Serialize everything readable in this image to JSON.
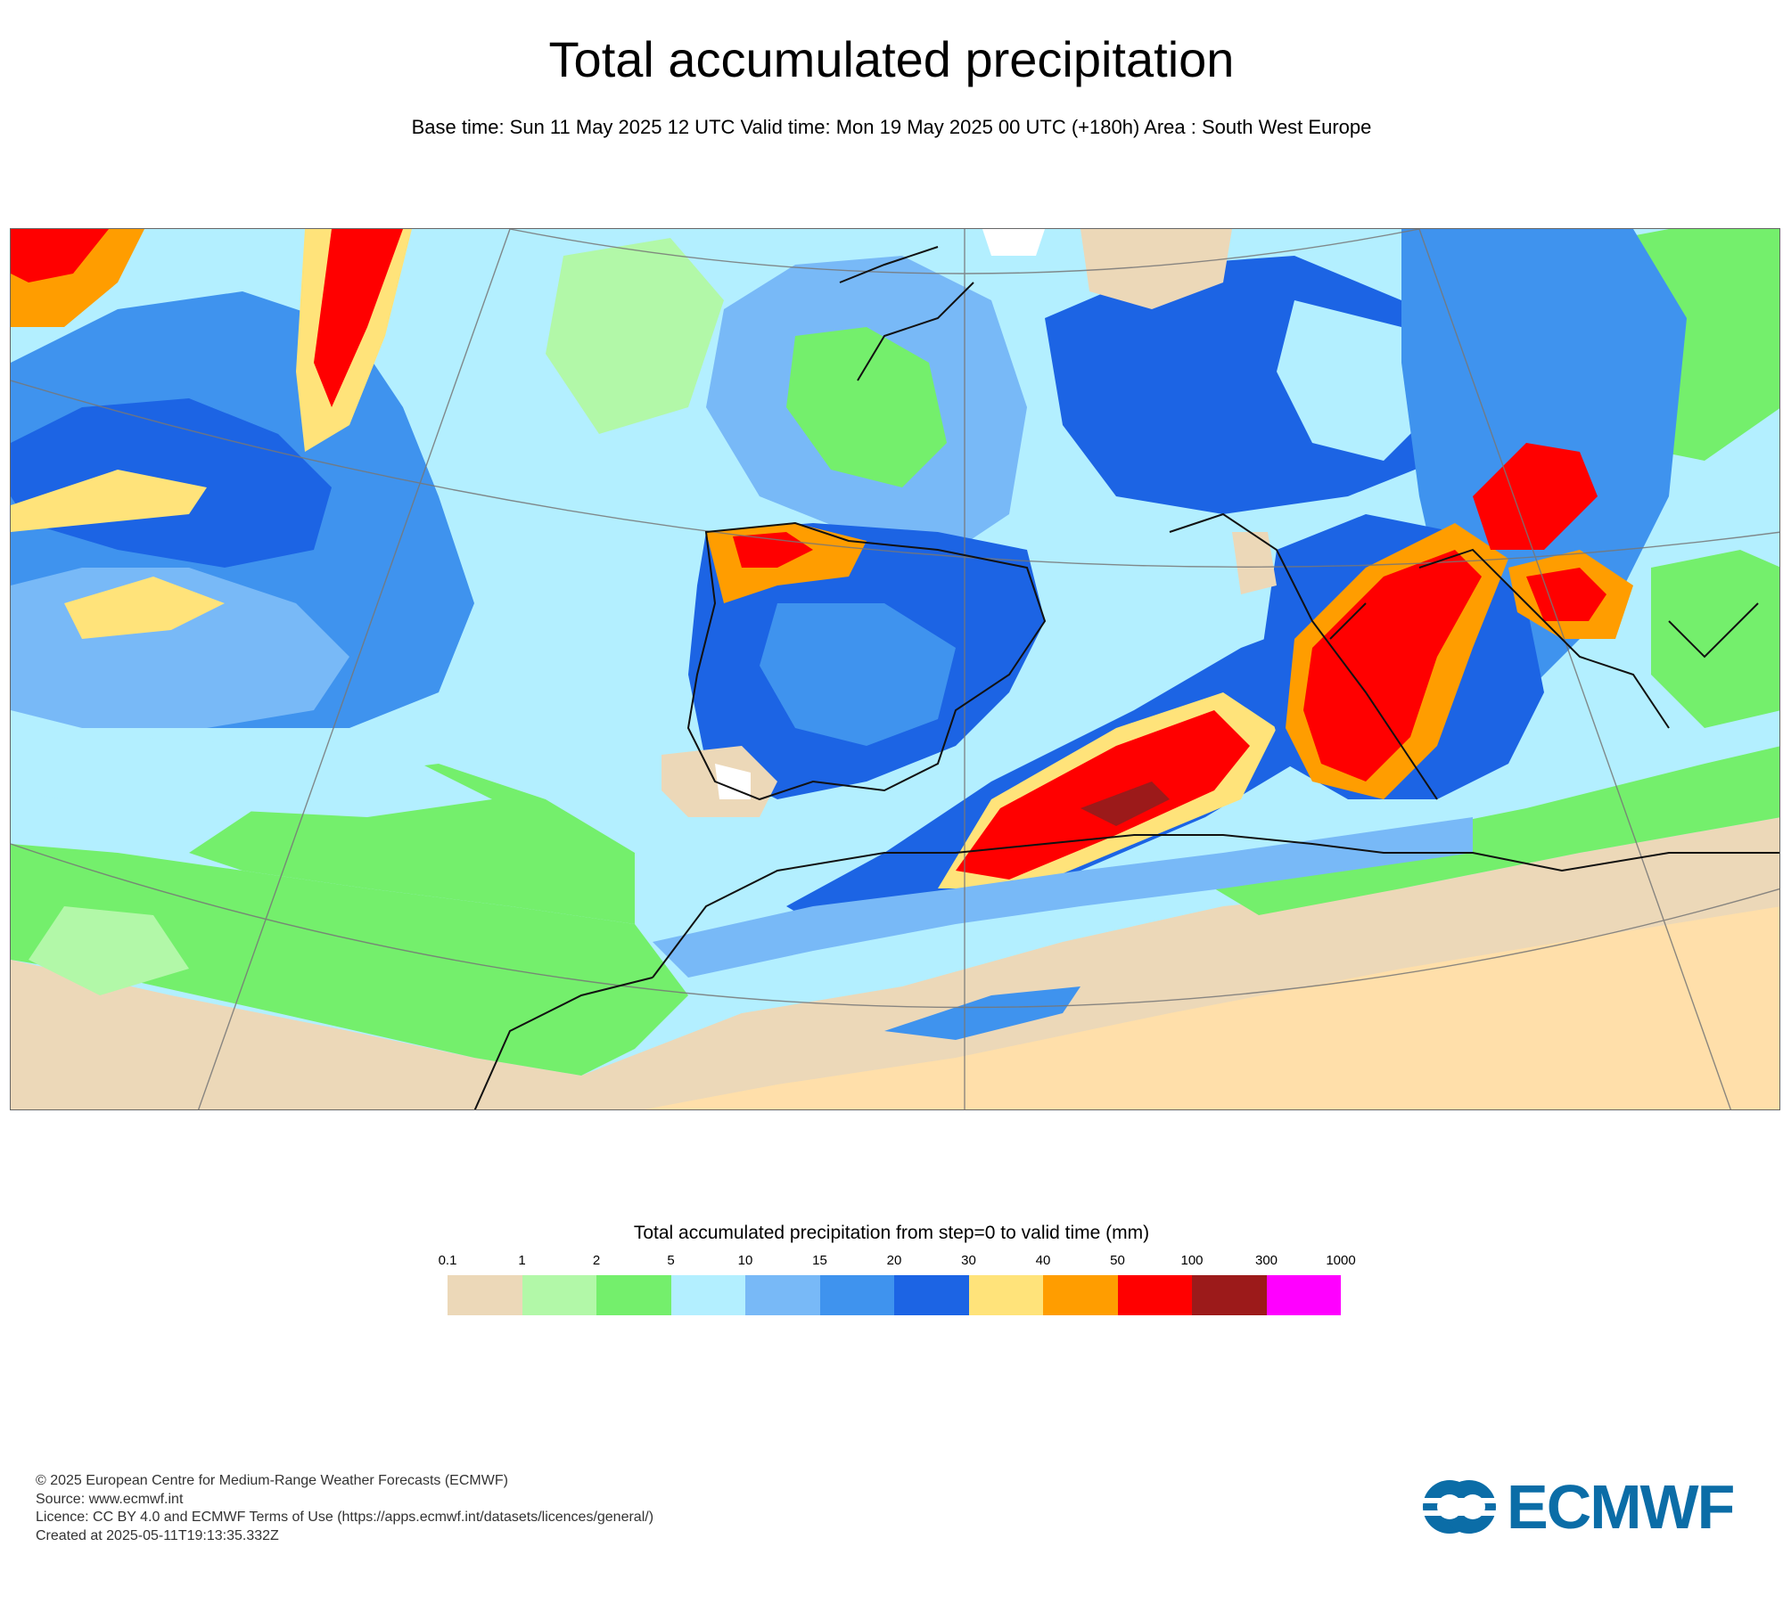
{
  "title": "Total accumulated precipitation",
  "subtitle": "Base time: Sun 11 May 2025 12 UTC Valid time: Mon 19 May 2025 00 UTC (+180h) Area : South West Europe",
  "legend": {
    "title": "Total accumulated precipitation from step=0 to valid time (mm)",
    "ticks": [
      "0.1",
      "1",
      "2",
      "5",
      "10",
      "15",
      "20",
      "30",
      "40",
      "50",
      "100",
      "300",
      "1000"
    ],
    "colors": [
      "#ecd8b8",
      "#b2f8a8",
      "#74ef6c",
      "#b3efff",
      "#78b9f7",
      "#3f93ee",
      "#1c64e4",
      "#ffe37a",
      "#ff9d00",
      "#ff0000",
      "#9c1a1a",
      "#ff00ff"
    ]
  },
  "map": {
    "area": "South West Europe",
    "land_dry_color": "#ffdfaa",
    "graticule_color": "#777777",
    "coastline_color": "#000000"
  },
  "footer": {
    "copyright": "© 2025 European Centre for Medium-Range Weather Forecasts (ECMWF)",
    "source": "Source: www.ecmwf.int",
    "licence": "Licence: CC BY 4.0 and ECMWF Terms of Use (https://apps.ecmwf.int/datasets/licences/general/)",
    "created": "Created at 2025-05-11T19:13:35.332Z"
  },
  "logo": {
    "text": "ECMWF",
    "color": "#0b6da7"
  }
}
